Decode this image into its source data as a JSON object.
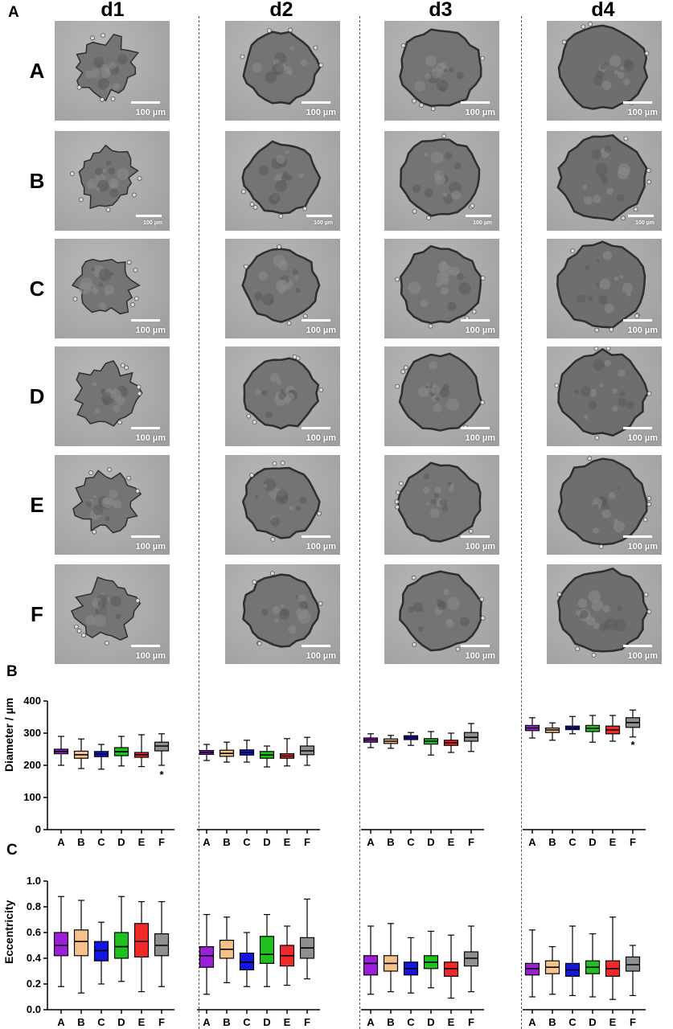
{
  "panels": {
    "a": "A",
    "b": "B",
    "c": "C"
  },
  "columns": [
    "d1",
    "d2",
    "d3",
    "d4"
  ],
  "rows": [
    "A",
    "B",
    "C",
    "D",
    "E",
    "F"
  ],
  "scale_bar_label": "100 µm",
  "colors": {
    "A": "#9a1fd6",
    "B": "#f5c28a",
    "C": "#1515e0",
    "D": "#1fc01f",
    "E": "#f02a2a",
    "F": "#8f8f8f"
  },
  "chart_data": [
    {
      "type": "boxplot",
      "ylabel": "Diameter / µm",
      "ylim": [
        0,
        400
      ],
      "yticks": [
        0,
        100,
        200,
        300,
        400
      ],
      "categories": [
        "A",
        "B",
        "C",
        "D",
        "E",
        "F"
      ],
      "groups": [
        {
          "name": "d1",
          "boxes": [
            {
              "min": 200,
              "q1": 236,
              "median": 243,
              "q3": 250,
              "max": 290
            },
            {
              "min": 190,
              "q1": 222,
              "median": 233,
              "q3": 244,
              "max": 282
            },
            {
              "min": 188,
              "q1": 227,
              "median": 235,
              "q3": 243,
              "max": 265
            },
            {
              "min": 198,
              "q1": 230,
              "median": 242,
              "q3": 255,
              "max": 290
            },
            {
              "min": 196,
              "q1": 225,
              "median": 233,
              "q3": 240,
              "max": 295
            },
            {
              "min": 200,
              "q1": 245,
              "median": 260,
              "q3": 272,
              "max": 298
            }
          ],
          "annotations": [
            {
              "category": "F",
              "text": "*",
              "y": 180
            }
          ]
        },
        {
          "name": "d2",
          "boxes": [
            {
              "min": 215,
              "q1": 234,
              "median": 240,
              "q3": 246,
              "max": 265
            },
            {
              "min": 210,
              "q1": 228,
              "median": 237,
              "q3": 247,
              "max": 272
            },
            {
              "min": 210,
              "q1": 232,
              "median": 240,
              "q3": 248,
              "max": 278
            },
            {
              "min": 195,
              "q1": 222,
              "median": 232,
              "q3": 243,
              "max": 260
            },
            {
              "min": 198,
              "q1": 222,
              "median": 229,
              "q3": 236,
              "max": 283
            },
            {
              "min": 200,
              "q1": 233,
              "median": 245,
              "q3": 260,
              "max": 287
            }
          ],
          "annotations": []
        },
        {
          "name": "d3",
          "boxes": [
            {
              "min": 255,
              "q1": 272,
              "median": 279,
              "q3": 285,
              "max": 298
            },
            {
              "min": 253,
              "q1": 268,
              "median": 275,
              "q3": 282,
              "max": 293
            },
            {
              "min": 262,
              "q1": 280,
              "median": 286,
              "q3": 292,
              "max": 302
            },
            {
              "min": 232,
              "q1": 266,
              "median": 275,
              "q3": 283,
              "max": 305
            },
            {
              "min": 240,
              "q1": 262,
              "median": 270,
              "q3": 278,
              "max": 300
            },
            {
              "min": 243,
              "q1": 275,
              "median": 287,
              "q3": 302,
              "max": 330
            }
          ],
          "annotations": []
        },
        {
          "name": "d4",
          "boxes": [
            {
              "min": 285,
              "q1": 308,
              "median": 316,
              "q3": 324,
              "max": 348
            },
            {
              "min": 278,
              "q1": 302,
              "median": 310,
              "q3": 316,
              "max": 332
            },
            {
              "min": 298,
              "q1": 311,
              "median": 316,
              "q3": 322,
              "max": 352
            },
            {
              "min": 272,
              "q1": 305,
              "median": 315,
              "q3": 324,
              "max": 355
            },
            {
              "min": 275,
              "q1": 298,
              "median": 310,
              "q3": 322,
              "max": 355
            },
            {
              "min": 288,
              "q1": 318,
              "median": 333,
              "q3": 348,
              "max": 372
            }
          ],
          "annotations": [
            {
              "category": "F",
              "text": "*",
              "y": 272
            }
          ]
        }
      ]
    },
    {
      "type": "boxplot",
      "ylabel": "Eccentricity",
      "ylim": [
        0.0,
        1.0
      ],
      "yticks": [
        0.0,
        0.2,
        0.4,
        0.6,
        0.8,
        1.0
      ],
      "categories": [
        "A",
        "B",
        "C",
        "D",
        "E",
        "F"
      ],
      "groups": [
        {
          "name": "d1",
          "boxes": [
            {
              "min": 0.18,
              "q1": 0.42,
              "median": 0.5,
              "q3": 0.6,
              "max": 0.88
            },
            {
              "min": 0.13,
              "q1": 0.42,
              "median": 0.53,
              "q3": 0.62,
              "max": 0.85
            },
            {
              "min": 0.2,
              "q1": 0.38,
              "median": 0.46,
              "q3": 0.53,
              "max": 0.68
            },
            {
              "min": 0.22,
              "q1": 0.4,
              "median": 0.49,
              "q3": 0.6,
              "max": 0.88
            },
            {
              "min": 0.14,
              "q1": 0.41,
              "median": 0.53,
              "q3": 0.67,
              "max": 0.84
            },
            {
              "min": 0.18,
              "q1": 0.42,
              "median": 0.5,
              "q3": 0.59,
              "max": 0.84
            }
          ],
          "annotations": []
        },
        {
          "name": "d2",
          "boxes": [
            {
              "min": 0.12,
              "q1": 0.33,
              "median": 0.42,
              "q3": 0.49,
              "max": 0.74
            },
            {
              "min": 0.21,
              "q1": 0.4,
              "median": 0.47,
              "q3": 0.54,
              "max": 0.72
            },
            {
              "min": 0.18,
              "q1": 0.31,
              "median": 0.37,
              "q3": 0.44,
              "max": 0.6
            },
            {
              "min": 0.18,
              "q1": 0.36,
              "median": 0.43,
              "q3": 0.57,
              "max": 0.74
            },
            {
              "min": 0.19,
              "q1": 0.34,
              "median": 0.42,
              "q3": 0.5,
              "max": 0.65
            },
            {
              "min": 0.24,
              "q1": 0.4,
              "median": 0.48,
              "q3": 0.56,
              "max": 0.86
            }
          ],
          "annotations": []
        },
        {
          "name": "d3",
          "boxes": [
            {
              "min": 0.12,
              "q1": 0.27,
              "median": 0.36,
              "q3": 0.42,
              "max": 0.65
            },
            {
              "min": 0.14,
              "q1": 0.3,
              "median": 0.36,
              "q3": 0.42,
              "max": 0.67
            },
            {
              "min": 0.13,
              "q1": 0.27,
              "median": 0.32,
              "q3": 0.37,
              "max": 0.56
            },
            {
              "min": 0.17,
              "q1": 0.32,
              "median": 0.37,
              "q3": 0.42,
              "max": 0.61
            },
            {
              "min": 0.09,
              "q1": 0.26,
              "median": 0.32,
              "q3": 0.37,
              "max": 0.58
            },
            {
              "min": 0.14,
              "q1": 0.34,
              "median": 0.4,
              "q3": 0.45,
              "max": 0.65
            }
          ],
          "annotations": []
        },
        {
          "name": "d4",
          "boxes": [
            {
              "min": 0.1,
              "q1": 0.27,
              "median": 0.32,
              "q3": 0.36,
              "max": 0.62
            },
            {
              "min": 0.12,
              "q1": 0.28,
              "median": 0.33,
              "q3": 0.38,
              "max": 0.49
            },
            {
              "min": 0.11,
              "q1": 0.26,
              "median": 0.31,
              "q3": 0.36,
              "max": 0.65
            },
            {
              "min": 0.1,
              "q1": 0.28,
              "median": 0.33,
              "q3": 0.38,
              "max": 0.59
            },
            {
              "min": 0.08,
              "q1": 0.26,
              "median": 0.32,
              "q3": 0.38,
              "max": 0.72
            },
            {
              "min": 0.11,
              "q1": 0.3,
              "median": 0.35,
              "q3": 0.41,
              "max": 0.5
            }
          ],
          "annotations": []
        }
      ]
    }
  ]
}
